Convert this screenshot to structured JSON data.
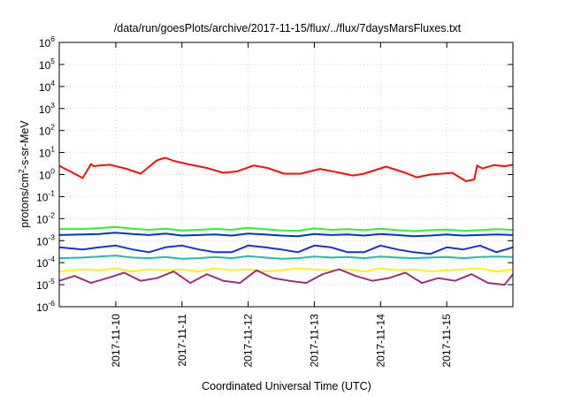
{
  "chart_data": {
    "type": "line",
    "title": "/data/run/goesPlots/archive/2017-11-15/flux/../flux/7daysMarsFluxes.txt",
    "xlabel": "Coordinated Universal Time (UTC)",
    "ylabel": {
      "parts": [
        {
          "text": "protons/cm",
          "sup": false
        },
        {
          "text": "2",
          "sup": true
        },
        {
          "text": "-s-sr-MeV",
          "sup": false
        }
      ]
    },
    "y_scale": "log",
    "ylim": [
      1e-06,
      1000000.0
    ],
    "y_ticks": [
      {
        "base": "10",
        "exp": "-6"
      },
      {
        "base": "10",
        "exp": "-5"
      },
      {
        "base": "10",
        "exp": "-4"
      },
      {
        "base": "10",
        "exp": "-3"
      },
      {
        "base": "10",
        "exp": "-2"
      },
      {
        "base": "10",
        "exp": "-1"
      },
      {
        "base": "10",
        "exp": "0"
      },
      {
        "base": "10",
        "exp": "1"
      },
      {
        "base": "10",
        "exp": "2"
      },
      {
        "base": "10",
        "exp": "3"
      },
      {
        "base": "10",
        "exp": "4"
      },
      {
        "base": "10",
        "exp": "5"
      },
      {
        "base": "10",
        "exp": "6"
      }
    ],
    "xlim": [
      "2017-11-09T03:30",
      "2017-11-16T00:00"
    ],
    "x_ticks": [
      "2017-11-10",
      "2017-11-11",
      "2017-11-12",
      "2017-11-13",
      "2017-11-14",
      "2017-11-15"
    ],
    "grid": true,
    "series": [
      {
        "color": "#ee1111",
        "x": [
          "2017-11-09T03:30",
          "2017-11-09T07:00",
          "2017-11-09T12:00",
          "2017-11-09T15:00",
          "2017-11-09T16:00",
          "2017-11-09T18:00",
          "2017-11-09T22:00",
          "2017-11-10T04:00",
          "2017-11-10T09:00",
          "2017-11-10T15:00",
          "2017-11-10T18:00",
          "2017-11-10T21:00",
          "2017-11-11T02:00",
          "2017-11-11T09:00",
          "2017-11-11T15:00",
          "2017-11-11T20:00",
          "2017-11-12T02:00",
          "2017-11-12T07:00",
          "2017-11-12T13:00",
          "2017-11-12T19:00",
          "2017-11-13T02:00",
          "2017-11-13T08:00",
          "2017-11-13T14:00",
          "2017-11-13T18:00",
          "2017-11-14T02:00",
          "2017-11-14T09:00",
          "2017-11-14T13:00",
          "2017-11-14T18:00",
          "2017-11-15T02:00",
          "2017-11-15T07:00",
          "2017-11-15T10:00",
          "2017-11-15T11:00",
          "2017-11-15T13:00",
          "2017-11-15T17:00",
          "2017-11-15T21:00",
          "2017-11-16T00:00"
        ],
        "y": [
          2.5,
          1.5,
          0.7,
          3.0,
          2.4,
          2.6,
          2.8,
          1.8,
          1.1,
          4.5,
          5.8,
          4.2,
          3.0,
          2.0,
          1.2,
          1.4,
          2.6,
          2.0,
          1.1,
          1.1,
          1.8,
          1.3,
          0.9,
          1.1,
          2.3,
          1.2,
          0.75,
          1.0,
          1.2,
          0.5,
          0.6,
          2.6,
          1.9,
          2.7,
          2.4,
          2.8
        ]
      },
      {
        "color": "#33ee33",
        "x": [
          "2017-11-09T03:30",
          "2017-11-09T12:00",
          "2017-11-09T18:00",
          "2017-11-10T00:00",
          "2017-11-10T06:00",
          "2017-11-10T12:00",
          "2017-11-10T18:00",
          "2017-11-11T00:00",
          "2017-11-11T06:00",
          "2017-11-11T12:00",
          "2017-11-11T18:00",
          "2017-11-12T00:00",
          "2017-11-12T06:00",
          "2017-11-12T12:00",
          "2017-11-12T18:00",
          "2017-11-13T00:00",
          "2017-11-13T06:00",
          "2017-11-13T12:00",
          "2017-11-13T18:00",
          "2017-11-14T00:00",
          "2017-11-14T06:00",
          "2017-11-14T12:00",
          "2017-11-14T18:00",
          "2017-11-15T00:00",
          "2017-11-15T06:00",
          "2017-11-15T12:00",
          "2017-11-15T18:00",
          "2017-11-16T00:00"
        ],
        "y": [
          0.0033,
          0.0034,
          0.0037,
          0.0042,
          0.0035,
          0.0031,
          0.0035,
          0.0029,
          0.0031,
          0.0034,
          0.0031,
          0.0038,
          0.0033,
          0.0029,
          0.0028,
          0.0036,
          0.0031,
          0.0033,
          0.003,
          0.0035,
          0.003,
          0.0027,
          0.003,
          0.0032,
          0.0028,
          0.003,
          0.0033,
          0.0031
        ]
      },
      {
        "color": "#1133dd",
        "x": [
          "2017-11-09T03:30",
          "2017-11-09T12:00",
          "2017-11-09T18:00",
          "2017-11-10T00:00",
          "2017-11-10T06:00",
          "2017-11-10T12:00",
          "2017-11-10T18:00",
          "2017-11-11T00:00",
          "2017-11-11T06:00",
          "2017-11-11T12:00",
          "2017-11-11T18:00",
          "2017-11-12T00:00",
          "2017-11-12T06:00",
          "2017-11-12T12:00",
          "2017-11-12T18:00",
          "2017-11-13T00:00",
          "2017-11-13T06:00",
          "2017-11-13T12:00",
          "2017-11-13T18:00",
          "2017-11-14T00:00",
          "2017-11-14T06:00",
          "2017-11-14T12:00",
          "2017-11-14T18:00",
          "2017-11-15T00:00",
          "2017-11-15T06:00",
          "2017-11-15T12:00",
          "2017-11-15T18:00",
          "2017-11-16T00:00"
        ],
        "y": [
          0.0005,
          0.0004,
          0.0005,
          0.0006,
          0.0004,
          0.0003,
          0.0005,
          0.0006,
          0.0004,
          0.0003,
          0.0003,
          0.0006,
          0.0005,
          0.0004,
          0.0003,
          0.0006,
          0.0005,
          0.0003,
          0.0003,
          0.0006,
          0.0004,
          0.0003,
          0.00025,
          0.0005,
          0.0004,
          0.0006,
          0.0003,
          0.0005
        ]
      },
      {
        "color": "#0033cc",
        "x": [
          "2017-11-09T03:30",
          "2017-11-09T12:00",
          "2017-11-09T18:00",
          "2017-11-10T00:00",
          "2017-11-10T06:00",
          "2017-11-10T12:00",
          "2017-11-10T18:00",
          "2017-11-11T00:00",
          "2017-11-11T06:00",
          "2017-11-11T12:00",
          "2017-11-11T18:00",
          "2017-11-12T00:00",
          "2017-11-12T06:00",
          "2017-11-12T12:00",
          "2017-11-12T18:00",
          "2017-11-13T00:00",
          "2017-11-13T06:00",
          "2017-11-13T12:00",
          "2017-11-13T18:00",
          "2017-11-14T00:00",
          "2017-11-14T06:00",
          "2017-11-14T12:00",
          "2017-11-14T18:00",
          "2017-11-15T00:00",
          "2017-11-15T06:00",
          "2017-11-15T12:00",
          "2017-11-15T18:00",
          "2017-11-16T00:00"
        ],
        "y": [
          0.0018,
          0.0019,
          0.002,
          0.0023,
          0.002,
          0.0018,
          0.0021,
          0.0017,
          0.0018,
          0.0019,
          0.0017,
          0.0021,
          0.0019,
          0.0017,
          0.0016,
          0.002,
          0.0018,
          0.0019,
          0.0017,
          0.002,
          0.0018,
          0.0016,
          0.0017,
          0.0019,
          0.0017,
          0.0018,
          0.0019,
          0.0018
        ]
      },
      {
        "color": "#22bbaa",
        "x": [
          "2017-11-09T03:30",
          "2017-11-09T12:00",
          "2017-11-09T18:00",
          "2017-11-10T00:00",
          "2017-11-10T06:00",
          "2017-11-10T12:00",
          "2017-11-10T18:00",
          "2017-11-11T00:00",
          "2017-11-11T06:00",
          "2017-11-11T12:00",
          "2017-11-11T18:00",
          "2017-11-12T00:00",
          "2017-11-12T06:00",
          "2017-11-12T12:00",
          "2017-11-12T18:00",
          "2017-11-13T00:00",
          "2017-11-13T06:00",
          "2017-11-13T12:00",
          "2017-11-13T18:00",
          "2017-11-14T00:00",
          "2017-11-14T06:00",
          "2017-11-14T12:00",
          "2017-11-14T18:00",
          "2017-11-15T00:00",
          "2017-11-15T06:00",
          "2017-11-15T12:00",
          "2017-11-15T18:00",
          "2017-11-16T00:00"
        ],
        "y": [
          0.00016,
          0.00017,
          0.00019,
          0.00021,
          0.00017,
          0.00016,
          0.00018,
          0.00015,
          0.00016,
          0.00018,
          0.00016,
          0.0002,
          0.00017,
          0.00015,
          0.00016,
          0.00019,
          0.00017,
          0.00018,
          0.00016,
          0.00019,
          0.00017,
          0.00016,
          0.00017,
          0.00018,
          0.00016,
          0.00018,
          0.00019,
          0.00018
        ]
      },
      {
        "color": "#ffee22",
        "x": [
          "2017-11-09T03:30",
          "2017-11-09T12:00",
          "2017-11-09T18:00",
          "2017-11-10T00:00",
          "2017-11-10T06:00",
          "2017-11-10T12:00",
          "2017-11-10T18:00",
          "2017-11-11T00:00",
          "2017-11-11T06:00",
          "2017-11-11T12:00",
          "2017-11-11T18:00",
          "2017-11-12T00:00",
          "2017-11-12T06:00",
          "2017-11-12T12:00",
          "2017-11-12T18:00",
          "2017-11-13T00:00",
          "2017-11-13T06:00",
          "2017-11-13T12:00",
          "2017-11-13T18:00",
          "2017-11-14T00:00",
          "2017-11-14T06:00",
          "2017-11-14T12:00",
          "2017-11-14T18:00",
          "2017-11-15T00:00",
          "2017-11-15T06:00",
          "2017-11-15T12:00",
          "2017-11-15T18:00",
          "2017-11-16T00:00"
        ],
        "y": [
          4e-05,
          5e-05,
          4.5e-05,
          5.5e-05,
          4e-05,
          5e-05,
          4.5e-05,
          5e-05,
          4e-05,
          5.5e-05,
          4.5e-05,
          5e-05,
          4e-05,
          4.5e-05,
          5.5e-05,
          5e-05,
          4.5e-05,
          5e-05,
          4e-05,
          5.5e-05,
          4.5e-05,
          5e-05,
          4e-05,
          4.5e-05,
          5e-05,
          5.5e-05,
          4e-05,
          5e-05
        ]
      },
      {
        "color": "#993377",
        "x": [
          "2017-11-09T03:30",
          "2017-11-09T09:00",
          "2017-11-09T15:00",
          "2017-11-09T21:00",
          "2017-11-10T03:00",
          "2017-11-10T09:00",
          "2017-11-10T15:00",
          "2017-11-10T21:00",
          "2017-11-11T03:00",
          "2017-11-11T09:00",
          "2017-11-11T15:00",
          "2017-11-11T21:00",
          "2017-11-12T03:00",
          "2017-11-12T09:00",
          "2017-11-12T15:00",
          "2017-11-12T21:00",
          "2017-11-13T03:00",
          "2017-11-13T09:00",
          "2017-11-13T15:00",
          "2017-11-13T21:00",
          "2017-11-14T03:00",
          "2017-11-14T09:00",
          "2017-11-14T15:00",
          "2017-11-14T21:00",
          "2017-11-15T03:00",
          "2017-11-15T09:00",
          "2017-11-15T15:00",
          "2017-11-15T21:00",
          "2017-11-16T00:00"
        ],
        "y": [
          1.5e-05,
          2.5e-05,
          1.2e-05,
          2e-05,
          3.5e-05,
          1.5e-05,
          2e-05,
          4e-05,
          1.2e-05,
          3e-05,
          1.5e-05,
          1.2e-05,
          4.5e-05,
          2e-05,
          1.5e-05,
          1.2e-05,
          3e-05,
          5e-05,
          2.5e-05,
          1.5e-05,
          2e-05,
          3.5e-05,
          1.2e-05,
          2e-05,
          1.5e-05,
          3e-05,
          1.2e-05,
          1e-05,
          3e-05
        ]
      }
    ]
  }
}
